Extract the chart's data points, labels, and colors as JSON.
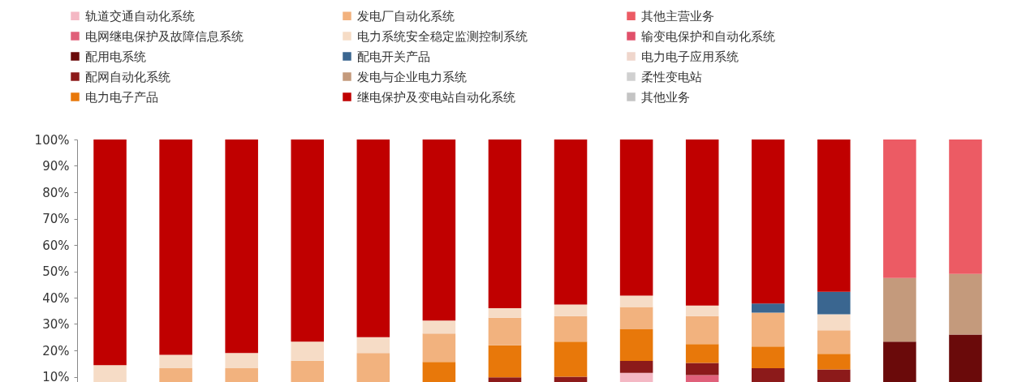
{
  "chart_data": {
    "type": "bar",
    "stacked": true,
    "legend": "top",
    "tick_labels": "y",
    "categories": [
      null,
      null,
      null,
      null,
      null,
      null,
      null,
      null,
      null,
      null,
      null,
      null,
      null,
      null
    ],
    "ylim": [
      0,
      100
    ],
    "yticks": [
      {
        "value": 10,
        "label": "10%"
      },
      {
        "value": 20,
        "label": "20%"
      },
      {
        "value": 30,
        "label": "30%"
      },
      {
        "value": 40,
        "label": "40%"
      },
      {
        "value": 50,
        "label": "50%"
      },
      {
        "value": 60,
        "label": "60%"
      },
      {
        "value": 70,
        "label": "70%"
      },
      {
        "value": 80,
        "label": "80%"
      },
      {
        "value": 90,
        "label": "90%"
      },
      {
        "value": 100,
        "label": "100%"
      }
    ],
    "series": [
      {
        "name": "轨道交通自动化系统",
        "color": "#f4b8c4",
        "values": [
          null,
          null,
          null,
          null,
          null,
          null,
          null,
          null,
          11.5,
          null,
          null,
          null,
          null,
          null
        ]
      },
      {
        "name": "电网继电保护及故障信息系统",
        "color": "#e0607a",
        "values": [
          null,
          null,
          null,
          null,
          null,
          null,
          null,
          null,
          null,
          10.6,
          null,
          null,
          null,
          null
        ]
      },
      {
        "name": "配用电系统",
        "color": "#6a0a0a",
        "values": [
          null,
          null,
          null,
          null,
          null,
          null,
          null,
          null,
          null,
          null,
          null,
          null,
          23.3,
          26
        ]
      },
      {
        "name": "配网自动化系统",
        "color": "#8c1a1a",
        "values": [
          null,
          null,
          null,
          null,
          null,
          null,
          9.8,
          10,
          4.5,
          4.6,
          13.2,
          12.8,
          null,
          null
        ]
      },
      {
        "name": "电力电子产品",
        "color": "#e8780a",
        "values": [
          null,
          null,
          null,
          null,
          null,
          15.6,
          12.1,
          13.3,
          12,
          7.2,
          8.3,
          5.9,
          null,
          null
        ]
      },
      {
        "name": "发电厂自动化系统",
        "color": "#f2b27e",
        "values": [
          null,
          13.2,
          13.2,
          16.1,
          19,
          10.8,
          10.5,
          9.7,
          8.5,
          10.6,
          12.8,
          8.9,
          null,
          null
        ]
      },
      {
        "name": "电力系统安全稳定监测控制系统",
        "color": "#f6dcc6",
        "values": [
          14.4,
          5.1,
          5.8,
          7.2,
          6,
          4.9,
          3.6,
          4.4,
          4.3,
          4,
          null,
          6.1,
          null,
          null
        ]
      },
      {
        "name": "配电开关产品",
        "color": "#3a6690",
        "values": [
          null,
          null,
          null,
          null,
          null,
          null,
          null,
          null,
          null,
          null,
          3.5,
          8.5,
          null,
          null
        ]
      },
      {
        "name": "发电与企业电力系统",
        "color": "#c49a7c",
        "values": [
          null,
          null,
          null,
          null,
          null,
          null,
          null,
          null,
          null,
          null,
          null,
          null,
          24.2,
          23
        ]
      },
      {
        "name": "继电保护及变电站自动化系统",
        "color": "#c00000",
        "values": [
          85.6,
          81.7,
          81,
          76.7,
          75,
          68.7,
          64,
          62.6,
          59.2,
          63,
          62.2,
          57.8,
          null,
          null
        ]
      },
      {
        "name": "其他主营业务",
        "color": "#ec5b64",
        "values": [
          null,
          null,
          null,
          null,
          null,
          null,
          null,
          null,
          null,
          null,
          null,
          null,
          52.5,
          51
        ]
      },
      {
        "name": "输变电保护和自动化系统",
        "color": "#e0506a",
        "values": [
          null,
          null,
          null,
          null,
          null,
          null,
          null,
          null,
          null,
          null,
          null,
          null,
          null,
          null
        ]
      },
      {
        "name": "电力电子应用系统",
        "color": "#efd6cc",
        "values": [
          null,
          null,
          null,
          null,
          null,
          null,
          null,
          null,
          null,
          null,
          null,
          null,
          null,
          null
        ]
      },
      {
        "name": "柔性变电站",
        "color": "#d0d0d0",
        "values": [
          null,
          null,
          null,
          null,
          null,
          null,
          null,
          null,
          null,
          null,
          null,
          null,
          null,
          null
        ]
      },
      {
        "name": "其他业务",
        "color": "#c4c4c4",
        "values": [
          null,
          null,
          null,
          null,
          null,
          null,
          null,
          null,
          null,
          null,
          null,
          null,
          null,
          null
        ]
      }
    ]
  }
}
